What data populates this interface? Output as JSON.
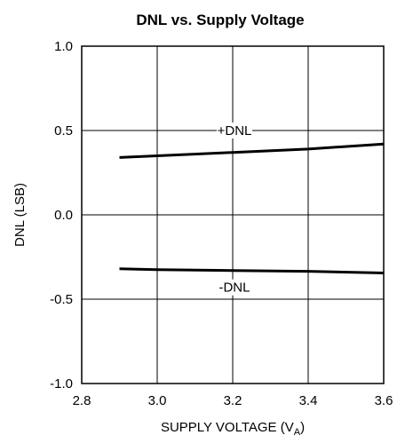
{
  "chart_data": {
    "type": "line",
    "title": "DNL vs. Supply Voltage",
    "xlabel_main": "SUPPLY VOLTAGE (V",
    "xlabel_sub": "A",
    "xlabel_close": ")",
    "ylabel": "DNL (LSB)",
    "xlim": [
      2.8,
      3.6
    ],
    "ylim": [
      -1.0,
      1.0
    ],
    "xticks": [
      "2.8",
      "3.0",
      "3.2",
      "3.4",
      "3.6"
    ],
    "yticks": [
      "1.0",
      "0.5",
      "0.0",
      "-0.5",
      "-1.0"
    ],
    "grid": true,
    "series": [
      {
        "name": "+DNL",
        "x": [
          2.9,
          3.0,
          3.2,
          3.4,
          3.6
        ],
        "y": [
          0.34,
          0.35,
          0.37,
          0.39,
          0.42
        ]
      },
      {
        "name": "-DNL",
        "x": [
          2.9,
          3.0,
          3.2,
          3.4,
          3.6
        ],
        "y": [
          -0.32,
          -0.325,
          -0.33,
          -0.335,
          -0.345
        ]
      }
    ]
  }
}
